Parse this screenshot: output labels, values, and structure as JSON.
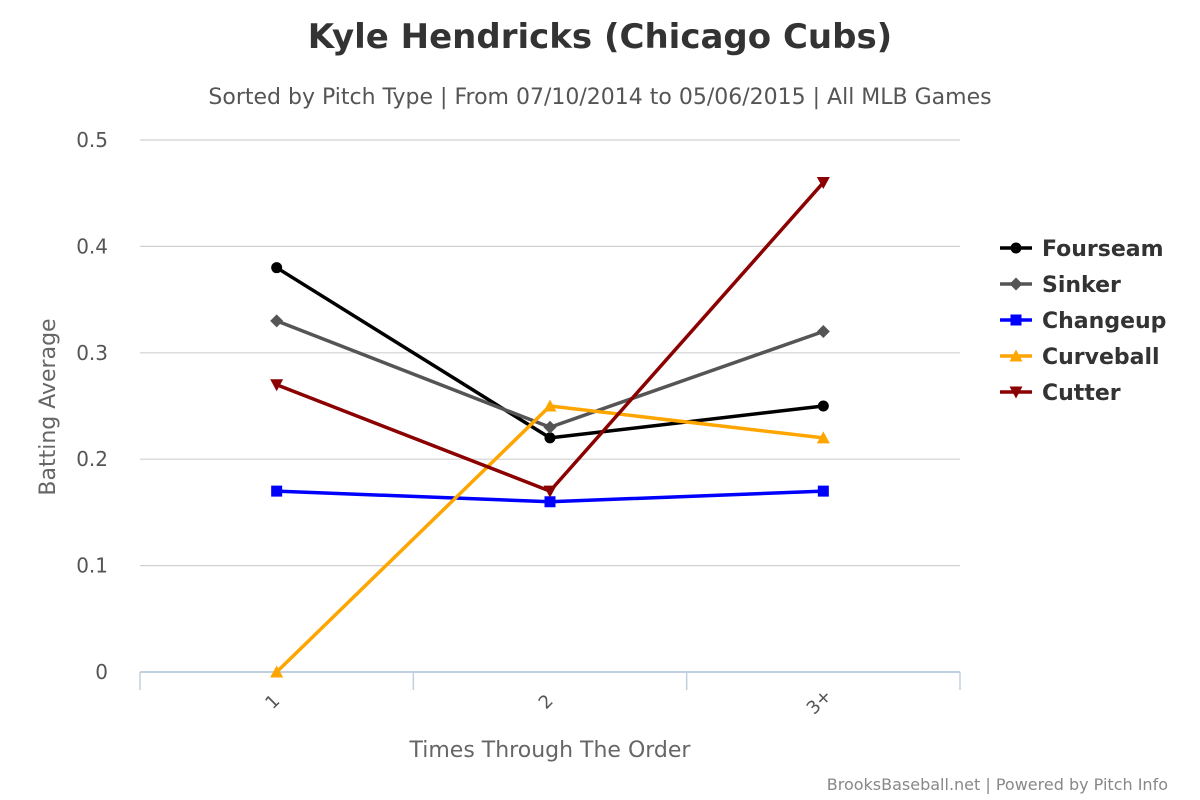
{
  "chart_data": {
    "type": "line",
    "title": "Kyle Hendricks (Chicago Cubs)",
    "subtitle": "Sorted by Pitch Type | From 07/10/2014 to 05/06/2015 | All MLB Games",
    "xlabel": "Times Through The Order",
    "ylabel": "Batting Average",
    "categories": [
      "1",
      "2",
      "3+"
    ],
    "ylim": [
      0,
      0.5
    ],
    "yticks": [
      "0",
      "0.1",
      "0.2",
      "0.3",
      "0.4",
      "0.5"
    ],
    "grid": true,
    "legend_position": "right",
    "series": [
      {
        "name": "Fourseam",
        "color": "#000000",
        "marker": "circle",
        "values": [
          0.38,
          0.22,
          0.25
        ]
      },
      {
        "name": "Sinker",
        "color": "#555555",
        "marker": "diamond",
        "values": [
          0.33,
          0.23,
          0.32
        ]
      },
      {
        "name": "Changeup",
        "color": "#0000ff",
        "marker": "square",
        "values": [
          0.17,
          0.16,
          0.17
        ]
      },
      {
        "name": "Curveball",
        "color": "#ffa500",
        "marker": "triangle-up",
        "values": [
          0.0,
          0.25,
          0.22
        ]
      },
      {
        "name": "Cutter",
        "color": "#8b0000",
        "marker": "triangle-down",
        "values": [
          0.27,
          0.17,
          0.46
        ]
      }
    ]
  },
  "credits": "BrooksBaseball.net | Powered by Pitch Info"
}
